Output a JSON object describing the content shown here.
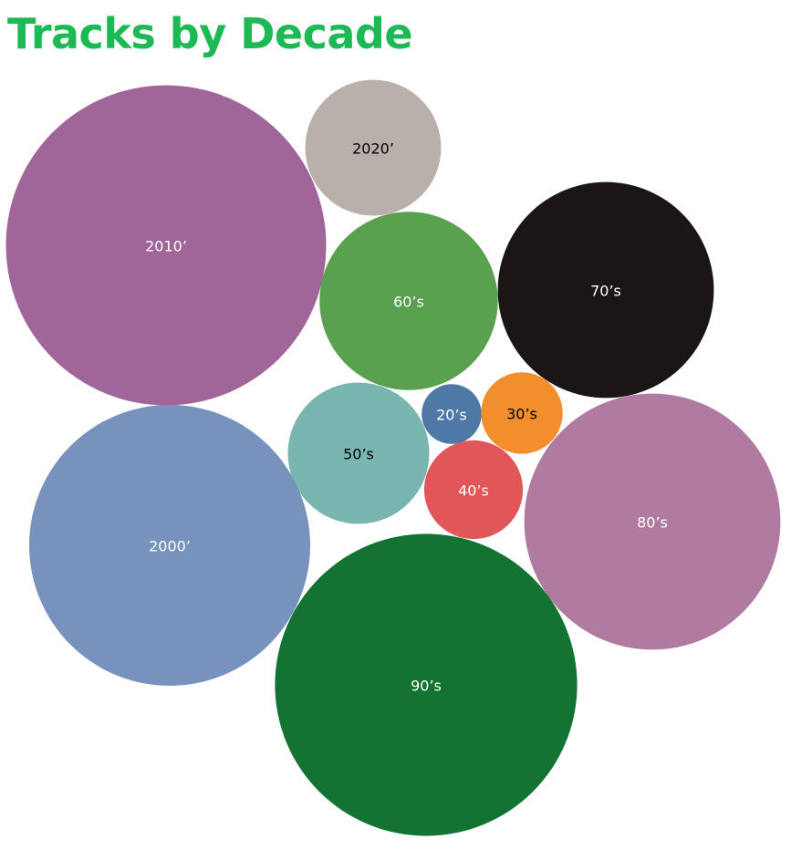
{
  "title": "Tracks by Decade",
  "colors": {
    "title": "#1db954"
  },
  "chart_data": {
    "type": "bubble",
    "title": "Tracks by Decade",
    "bubbles": [
      {
        "label": "2010’",
        "value": 1000,
        "color": "#a06699",
        "text_color": "#ffffff"
      },
      {
        "label": "2020’",
        "value": 180,
        "color": "#bab0ab",
        "text_color": "#000000"
      },
      {
        "label": "60’s",
        "value": 310,
        "color": "#59a14f",
        "text_color": "#ffffff"
      },
      {
        "label": "70’s",
        "value": 455,
        "color": "#1a1616",
        "text_color": "#ffffff"
      },
      {
        "label": "50’s",
        "value": 195,
        "color": "#79b6b0",
        "text_color": "#000000"
      },
      {
        "label": "20’s",
        "value": 35,
        "color": "#4e79a7",
        "text_color": "#ffffff"
      },
      {
        "label": "30’s",
        "value": 65,
        "color": "#f28e2c",
        "text_color": "#000000"
      },
      {
        "label": "40’s",
        "value": 95,
        "color": "#e15759",
        "text_color": "#ffffff"
      },
      {
        "label": "80’s",
        "value": 640,
        "color": "#b07aa1",
        "text_color": "#ffffff"
      },
      {
        "label": "2000’",
        "value": 770,
        "color": "#7793bd",
        "text_color": "#ffffff"
      },
      {
        "label": "90’s",
        "value": 890,
        "color": "#137333",
        "text_color": "#ffffff"
      }
    ]
  }
}
